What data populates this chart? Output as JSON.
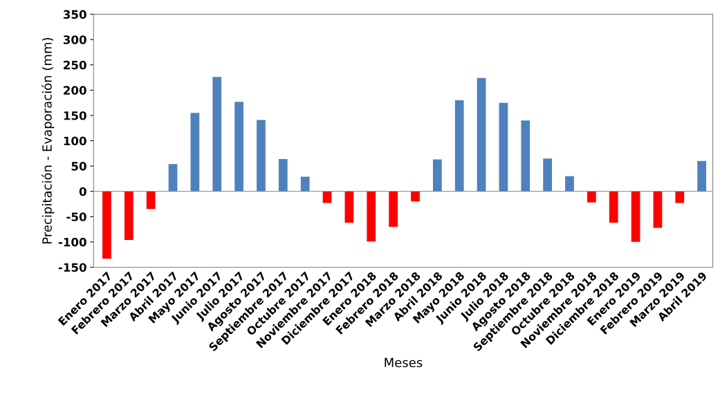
{
  "chart_data": {
    "type": "bar",
    "xlabel": "Meses",
    "ylabel": "Precipitación - Evaporación (mm)",
    "categories": [
      "Enero 2017",
      "Febrero 2017",
      "Marzo 2017",
      "Abril 2017",
      "Mayo 2017",
      "Junio 2017",
      "Julio 2017",
      "Agosto 2017",
      "Septiembre 2017",
      "Octubre 2017",
      "Noviembre 2017",
      "Diciembre 2017",
      "Enero 2018",
      "Febrero 2018",
      "Marzo 2018",
      "Abril 2018",
      "Mayo 2018",
      "Junio 2018",
      "Julio 2018",
      "Agosto 2018",
      "Septiembre 2018",
      "Octubre 2018",
      "Noviembre 2018",
      "Diciembre 2018",
      "Enero 2019",
      "Febrero 2019",
      "Marzo 2019",
      "Abril 2019"
    ],
    "values": [
      -133,
      -96,
      -35,
      54,
      155,
      226,
      177,
      141,
      64,
      29,
      -23,
      -62,
      -99,
      -70,
      -20,
      63,
      180,
      224,
      175,
      140,
      65,
      30,
      -22,
      -62,
      -100,
      -72,
      -23,
      60
    ],
    "colors": [
      "#ff0000",
      "#ff0000",
      "#ff0000",
      "#4f81bd",
      "#4f81bd",
      "#4f81bd",
      "#4f81bd",
      "#4f81bd",
      "#4f81bd",
      "#4f81bd",
      "#ff0000",
      "#ff0000",
      "#ff0000",
      "#ff0000",
      "#ff0000",
      "#4f81bd",
      "#4f81bd",
      "#4f81bd",
      "#4f81bd",
      "#4f81bd",
      "#4f81bd",
      "#4f81bd",
      "#ff0000",
      "#ff0000",
      "#ff0000",
      "#ff0000",
      "#ff0000",
      "#4f81bd"
    ],
    "ylim": [
      -150,
      350
    ],
    "yticks": [
      -150,
      -100,
      -50,
      0,
      50,
      100,
      150,
      200,
      250,
      300,
      350
    ],
    "grid": false,
    "ref_lines": [
      {
        "axis": "y",
        "value": 0,
        "color": "#808080"
      }
    ]
  }
}
